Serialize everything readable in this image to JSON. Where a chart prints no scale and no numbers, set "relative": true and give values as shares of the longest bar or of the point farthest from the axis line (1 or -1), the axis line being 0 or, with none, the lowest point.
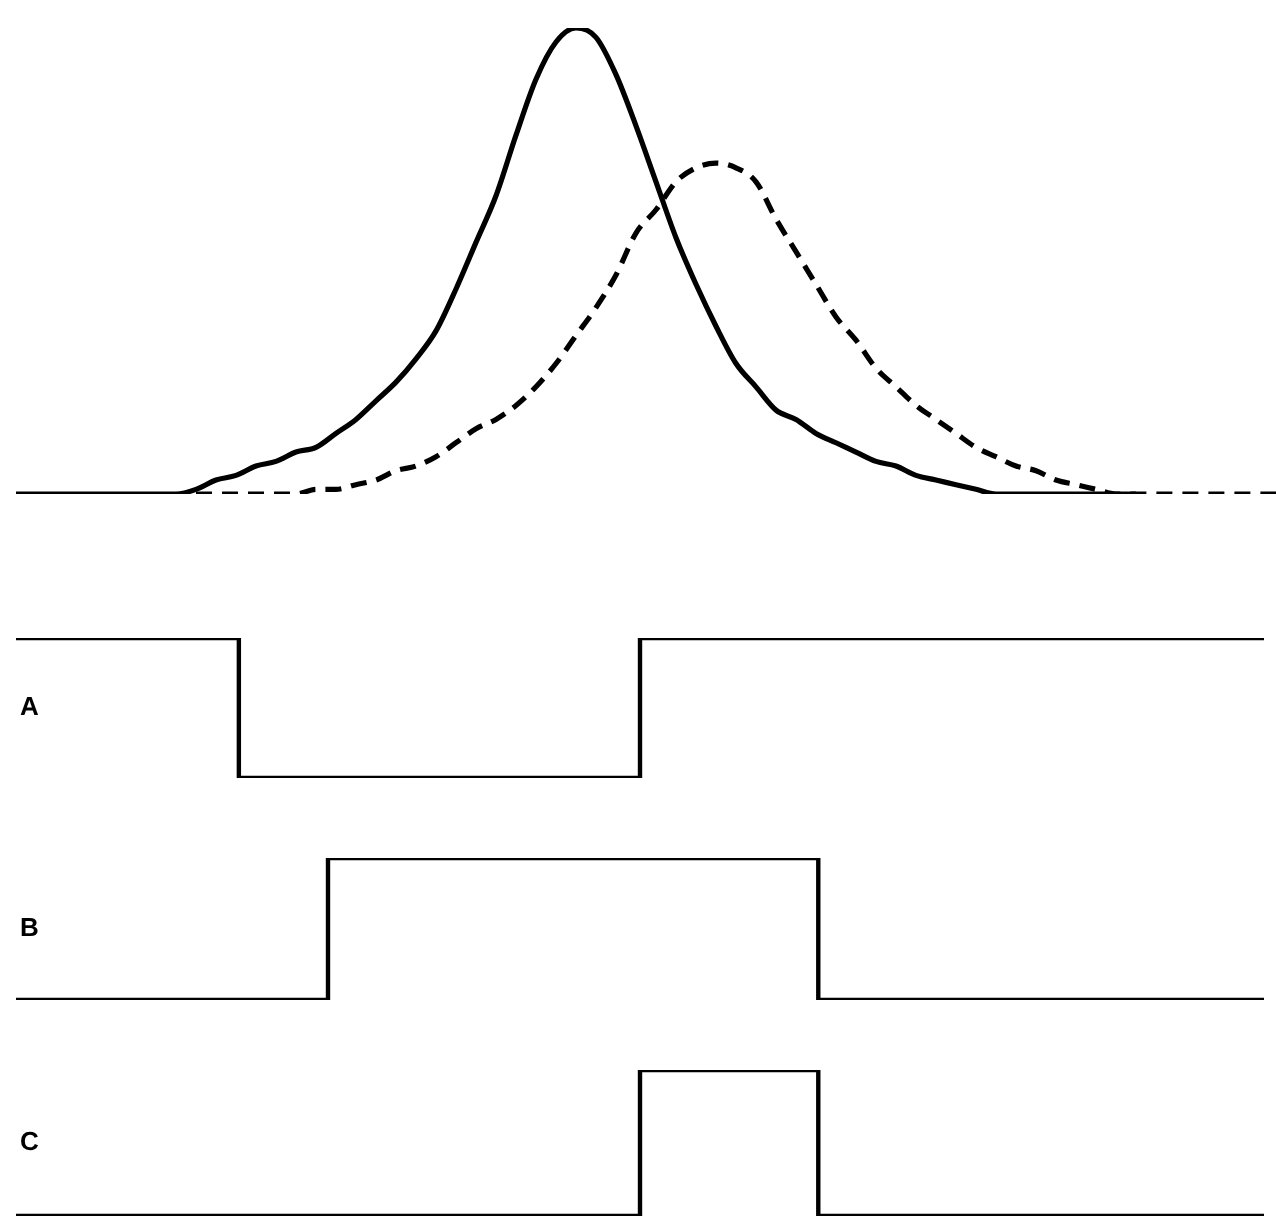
{
  "chart_data": [
    {
      "type": "line",
      "relative": true,
      "categories": [
        null,
        null,
        null,
        null,
        null,
        null,
        null,
        null,
        null,
        null,
        null,
        null,
        null,
        null,
        null,
        null,
        null,
        null,
        null,
        null,
        null,
        null,
        null,
        null,
        null,
        null,
        null,
        null,
        null,
        null,
        null,
        null,
        null,
        null,
        null,
        null,
        null,
        null,
        null,
        null,
        null,
        null,
        null,
        null,
        null,
        null,
        null,
        null,
        null,
        null,
        null,
        null,
        null,
        null,
        null,
        null,
        null,
        null,
        null,
        null,
        null,
        null,
        null,
        null
      ],
      "series": [
        {
          "color": "#000000",
          "line_style": "solid",
          "values": [
            0,
            0,
            0,
            0,
            0,
            0,
            0,
            0,
            0,
            0.01,
            0.03,
            0.04,
            0.06,
            0.07,
            0.09,
            0.1,
            0.13,
            0.16,
            0.2,
            0.24,
            0.29,
            0.35,
            0.44,
            0.54,
            0.64,
            0.77,
            0.89,
            0.97,
            1,
            0.98,
            0.9,
            0.79,
            0.67,
            0.55,
            0.45,
            0.36,
            0.28,
            0.23,
            0.18,
            0.16,
            0.13,
            0.11,
            0.09,
            0.07,
            0.06,
            0.04,
            0.03,
            0.02,
            0.01,
            0,
            0,
            0,
            0,
            0,
            0,
            0,
            0,
            null,
            null,
            null,
            null,
            null,
            null,
            null
          ]
        },
        {
          "color": "#000000",
          "line_style": "dashed",
          "values": [
            null,
            null,
            null,
            null,
            null,
            null,
            null,
            null,
            null,
            0,
            0,
            0,
            0,
            0,
            0,
            0.01,
            0.01,
            0.02,
            0.03,
            0.05,
            0.06,
            0.08,
            0.11,
            0.14,
            0.16,
            0.19,
            0.23,
            0.28,
            0.34,
            0.4,
            0.47,
            0.56,
            0.61,
            0.67,
            0.7,
            0.71,
            0.7,
            0.67,
            0.59,
            0.52,
            0.45,
            0.38,
            0.33,
            0.27,
            0.23,
            0.19,
            0.16,
            0.13,
            0.1,
            0.08,
            0.06,
            0.05,
            0.03,
            0.02,
            0.01,
            0,
            0,
            0,
            0,
            0,
            0,
            0,
            0,
            0
          ]
        }
      ]
    },
    {
      "type": "step",
      "relative": true,
      "categories": [
        null,
        null,
        null,
        null,
        null,
        null,
        null,
        null,
        null,
        null,
        null,
        null,
        null,
        null,
        null,
        null,
        null,
        null,
        null,
        null,
        null,
        null,
        null,
        null,
        null,
        null,
        null,
        null,
        null
      ],
      "series": [
        {
          "name": "A",
          "color": "#000000",
          "values": [
            1,
            1,
            1,
            1,
            1,
            0,
            0,
            0,
            0,
            0,
            0,
            0,
            0,
            0,
            1,
            1,
            1,
            1,
            1,
            1,
            1,
            1,
            1,
            1,
            1,
            1,
            1,
            1,
            1
          ]
        }
      ]
    },
    {
      "type": "step",
      "relative": true,
      "categories": [
        null,
        null,
        null,
        null,
        null,
        null,
        null,
        null,
        null,
        null,
        null,
        null,
        null,
        null,
        null,
        null,
        null,
        null,
        null,
        null,
        null,
        null,
        null,
        null,
        null,
        null,
        null,
        null,
        null
      ],
      "series": [
        {
          "name": "B",
          "color": "#000000",
          "values": [
            0,
            0,
            0,
            0,
            0,
            0,
            0,
            1,
            1,
            1,
            1,
            1,
            1,
            1,
            1,
            1,
            1,
            1,
            0,
            0,
            0,
            0,
            0,
            0,
            0,
            0,
            0,
            0,
            0
          ]
        }
      ]
    },
    {
      "type": "step",
      "relative": true,
      "categories": [
        null,
        null,
        null,
        null,
        null,
        null,
        null,
        null,
        null,
        null,
        null,
        null,
        null,
        null,
        null,
        null,
        null,
        null,
        null,
        null,
        null,
        null,
        null,
        null,
        null,
        null,
        null,
        null,
        null
      ],
      "series": [
        {
          "name": "C",
          "color": "#000000",
          "values": [
            0,
            0,
            0,
            0,
            0,
            0,
            0,
            0,
            0,
            0,
            0,
            0,
            0,
            0,
            1,
            1,
            1,
            1,
            0,
            0,
            0,
            0,
            0,
            0,
            0,
            0,
            0,
            0,
            0
          ]
        }
      ]
    }
  ]
}
